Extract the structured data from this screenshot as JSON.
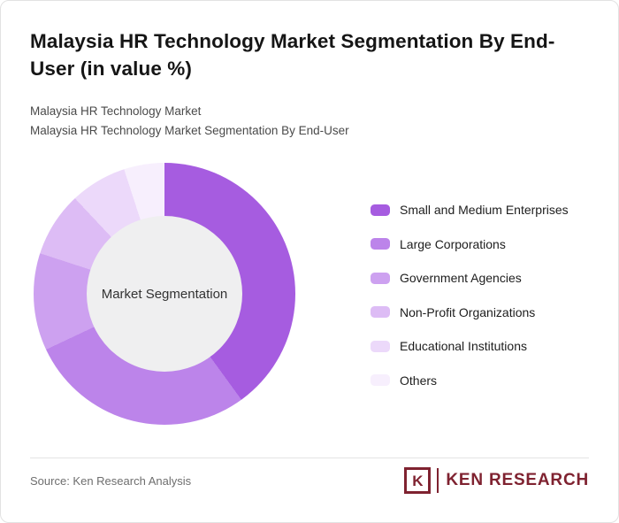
{
  "page": {
    "title": "Malaysia HR Technology Market Segmentation By End-User (in value %)",
    "subtitle_line1": "Malaysia HR Technology Market",
    "subtitle_line2": "Malaysia HR Technology Market Segmentation By End-User",
    "source": "Source: Ken Research Analysis",
    "brand": {
      "logo_letter": "K",
      "name": "Ken Research",
      "color": "#7f2230"
    }
  },
  "chart_data": {
    "type": "pie",
    "donut": true,
    "title": "Malaysia HR Technology Market Segmentation By End-User (in value %)",
    "unit": "value %",
    "center_label": "Market Segmentation",
    "legend_position": "right",
    "center_background": "#efeff0",
    "segments": [
      {
        "label": "Small and Medium Enterprises",
        "value": 40,
        "color": "#a65ce0"
      },
      {
        "label": "Large Corporations",
        "value": 28,
        "color": "#bc84ea"
      },
      {
        "label": "Government Agencies",
        "value": 12,
        "color": "#cda1f0"
      },
      {
        "label": "Non-Profit Organizations",
        "value": 8,
        "color": "#ddbcf5"
      },
      {
        "label": "Educational Institutions",
        "value": 7,
        "color": "#ecd9fa"
      },
      {
        "label": "Others",
        "value": 5,
        "color": "#f7effd"
      }
    ]
  }
}
